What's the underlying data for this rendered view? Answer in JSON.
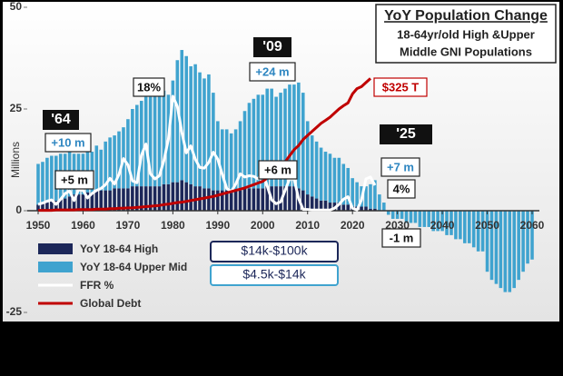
{
  "chart_data": {
    "type": "bar",
    "title": "YoY Population Change",
    "subtitle": [
      "18-64yr/old High &Upper",
      "Middle GNI Populations"
    ],
    "ylabel": "Millions",
    "legend_notes": [
      "$14k-$100k",
      "$4.5k-$14k"
    ],
    "callouts": [
      "'64",
      "'09",
      "'25"
    ],
    "xlim": [
      1950,
      2060
    ],
    "xticks": [
      1950,
      1960,
      1970,
      1980,
      1990,
      2000,
      2010,
      2020,
      2030,
      2040,
      2050,
      2060
    ],
    "ylim": [
      -25,
      50
    ],
    "yticks": [
      -25,
      0,
      25,
      50
    ],
    "stacked": true,
    "x": [
      1950,
      1951,
      1952,
      1953,
      1954,
      1955,
      1956,
      1957,
      1958,
      1959,
      1960,
      1961,
      1962,
      1963,
      1964,
      1965,
      1966,
      1967,
      1968,
      1969,
      1970,
      1971,
      1972,
      1973,
      1974,
      1975,
      1976,
      1977,
      1978,
      1979,
      1980,
      1981,
      1982,
      1983,
      1984,
      1985,
      1986,
      1987,
      1988,
      1989,
      1990,
      1991,
      1992,
      1993,
      1994,
      1995,
      1996,
      1997,
      1998,
      1999,
      2000,
      2001,
      2002,
      2003,
      2004,
      2005,
      2006,
      2007,
      2008,
      2009,
      2010,
      2011,
      2012,
      2013,
      2014,
      2015,
      2016,
      2017,
      2018,
      2019,
      2020,
      2021,
      2022,
      2023,
      2024,
      2025,
      2026,
      2027,
      2028,
      2029,
      2030,
      2031,
      2032,
      2033,
      2034,
      2035,
      2036,
      2037,
      2038,
      2039,
      2040,
      2041,
      2042,
      2043,
      2044,
      2045,
      2046,
      2047,
      2048,
      2049,
      2050,
      2051,
      2052,
      2053,
      2054,
      2055,
      2056,
      2057,
      2058,
      2059,
      2060
    ],
    "series": [
      {
        "name": "YoY 18-64 High",
        "kind": "bar",
        "color": "#1c2759",
        "values": [
          1.5,
          2,
          2,
          2.5,
          2.5,
          3,
          3,
          3.5,
          4,
          4,
          4,
          4.5,
          4.5,
          5,
          5,
          5,
          5,
          5.5,
          5.5,
          5.5,
          5.5,
          6,
          6,
          6,
          6,
          6,
          6,
          6,
          6.5,
          6.5,
          7,
          7,
          7.5,
          7,
          6.5,
          6,
          6,
          5.5,
          5.5,
          5,
          5,
          5,
          5,
          5,
          5,
          5,
          5.5,
          5.5,
          5.5,
          5.5,
          5.5,
          6,
          6,
          6,
          6,
          6,
          6,
          6,
          5.5,
          5,
          4,
          3.5,
          3,
          2.5,
          2.5,
          2,
          2,
          2,
          1.5,
          1.5,
          1,
          1,
          1,
          1,
          0.5,
          0.5,
          0,
          0,
          0,
          0,
          0,
          0,
          0,
          0,
          0,
          0,
          0,
          0,
          0,
          0,
          0,
          0,
          0,
          0,
          0,
          0,
          0,
          0,
          0,
          0,
          0,
          0,
          0,
          0,
          0,
          0,
          0,
          0,
          0,
          0,
          0
        ],
        "value_labels": [
          null,
          null,
          null,
          null,
          null,
          null,
          null,
          null,
          null,
          null,
          null,
          null,
          null,
          null,
          "+5 m",
          null,
          null,
          null,
          null,
          null,
          null,
          null,
          null,
          null,
          null,
          null,
          null,
          null,
          null,
          null,
          null,
          null,
          null,
          null,
          null,
          null,
          null,
          null,
          null,
          null,
          null,
          null,
          null,
          null,
          null,
          null,
          null,
          null,
          null,
          null,
          null,
          null,
          null,
          null,
          null,
          null,
          null,
          "+6 m",
          null,
          null,
          null,
          null,
          null,
          null,
          null,
          null,
          null,
          null,
          null,
          null,
          null,
          null,
          null,
          null,
          null,
          null,
          null,
          null,
          null,
          null,
          null,
          null,
          null,
          null,
          null,
          null,
          null,
          null,
          null,
          null,
          null,
          null,
          null,
          null,
          null,
          null,
          null,
          null,
          null,
          null,
          null,
          null,
          null,
          null,
          null,
          null,
          null,
          null,
          null,
          null,
          null
        ]
      },
      {
        "name": "YoY 18-64 Upper Mid",
        "kind": "bar",
        "color": "#3fa3cf",
        "values": [
          10,
          10,
          11,
          11,
          11,
          11,
          11,
          11,
          10,
          10,
          10,
          10,
          10,
          11,
          10,
          12,
          13,
          13,
          14,
          15,
          17,
          19,
          20,
          21,
          22,
          22,
          23,
          23,
          23,
          22,
          25,
          30,
          32,
          31,
          29,
          30,
          28,
          27,
          28,
          24,
          17,
          15,
          15,
          14,
          15,
          17,
          19,
          21,
          22,
          23,
          23,
          24,
          24,
          22,
          23,
          24,
          25,
          25,
          26,
          24,
          18,
          15,
          14,
          13,
          12,
          12,
          11,
          11,
          10,
          9,
          7,
          6,
          5,
          5,
          6,
          7,
          4,
          2,
          -1,
          -2,
          -2,
          -2,
          -3,
          -3,
          -3,
          -4,
          -4,
          -4,
          -5,
          -5,
          -5,
          -6,
          -6,
          -7,
          -7,
          -8,
          -8,
          -9,
          -10,
          -10,
          -15,
          -17,
          -18,
          -19,
          -20,
          -20,
          -19,
          -17,
          -15,
          -13,
          -12
        ],
        "value_labels": [
          null,
          null,
          null,
          null,
          null,
          null,
          null,
          null,
          null,
          null,
          null,
          null,
          null,
          null,
          "+10 m",
          null,
          null,
          null,
          null,
          null,
          null,
          null,
          null,
          null,
          null,
          null,
          null,
          null,
          null,
          null,
          null,
          null,
          null,
          null,
          null,
          null,
          null,
          null,
          null,
          null,
          null,
          null,
          null,
          null,
          null,
          null,
          null,
          null,
          null,
          null,
          null,
          null,
          null,
          null,
          null,
          null,
          null,
          null,
          null,
          "+24 m",
          null,
          null,
          null,
          null,
          null,
          null,
          null,
          null,
          null,
          null,
          null,
          null,
          null,
          null,
          null,
          "+7 m",
          null,
          null,
          "-1 m",
          null,
          null,
          null,
          null,
          null,
          null,
          null,
          null,
          null,
          null,
          null,
          null,
          null,
          null,
          null,
          null,
          null,
          null,
          null,
          null,
          null,
          null,
          null,
          null,
          null,
          null,
          null,
          null,
          null,
          null,
          null,
          null
        ]
      },
      {
        "name": "FFR %",
        "kind": "line",
        "color": "#ffffff",
        "ylim": [
          -16,
          32
        ],
        "values": [
          1.0,
          1.2,
          1.5,
          1.7,
          1.0,
          1.8,
          2.7,
          3.1,
          1.6,
          3.3,
          3.2,
          2.0,
          2.7,
          3.2,
          3.5,
          4.1,
          5.1,
          4.2,
          5.7,
          8.2,
          7.2,
          4.7,
          4.4,
          8.7,
          10.5,
          5.8,
          5.0,
          5.5,
          7.9,
          11.2,
          18,
          16.4,
          12.3,
          9.1,
          10.2,
          8.1,
          6.8,
          6.7,
          7.6,
          9.2,
          8.1,
          5.7,
          3.5,
          3.0,
          4.2,
          5.8,
          5.3,
          5.5,
          5.4,
          5.0,
          6.2,
          3.9,
          1.7,
          1.1,
          1.4,
          3.2,
          5.0,
          5.0,
          1.9,
          0.2,
          0.2,
          0.1,
          0.1,
          0.1,
          0.1,
          0.1,
          0.4,
          1.0,
          1.8,
          2.2,
          0.4,
          0.1,
          1.7,
          5.0,
          5.3,
          4,
          null,
          null,
          null,
          null,
          null,
          null,
          null,
          null,
          null,
          null,
          null,
          null,
          null,
          null,
          null,
          null,
          null,
          null,
          null,
          null,
          null,
          null,
          null,
          null,
          null,
          null,
          null,
          null,
          null,
          null,
          null,
          null,
          null,
          null,
          null
        ],
        "value_labels": [
          null,
          null,
          null,
          null,
          null,
          null,
          null,
          null,
          null,
          null,
          null,
          null,
          null,
          null,
          null,
          null,
          null,
          null,
          null,
          null,
          null,
          null,
          null,
          null,
          null,
          null,
          null,
          null,
          null,
          null,
          "18%",
          null,
          null,
          null,
          null,
          null,
          null,
          null,
          null,
          null,
          null,
          null,
          null,
          null,
          null,
          null,
          null,
          null,
          null,
          null,
          null,
          null,
          null,
          null,
          null,
          null,
          null,
          null,
          null,
          null,
          null,
          null,
          null,
          null,
          null,
          null,
          null,
          null,
          null,
          null,
          null,
          null,
          null,
          null,
          null,
          "4%",
          null,
          null,
          null,
          null,
          null,
          null,
          null,
          null,
          null,
          null,
          null,
          null,
          null,
          null,
          null,
          null,
          null,
          null,
          null,
          null,
          null,
          null,
          null,
          null,
          null,
          null,
          null,
          null,
          null,
          null,
          null,
          null,
          null,
          null,
          null
        ]
      },
      {
        "name": "Global Debt",
        "kind": "line",
        "color": "#c00000",
        "ylim": [
          -250,
          500
        ],
        "values": [
          1,
          1,
          1,
          1,
          2,
          2,
          2,
          2,
          2,
          3,
          3,
          3,
          3,
          4,
          4,
          4,
          5,
          5,
          6,
          6,
          7,
          7,
          8,
          9,
          10,
          11,
          12,
          13,
          15,
          16,
          18,
          20,
          21,
          23,
          25,
          27,
          29,
          31,
          33,
          35,
          38,
          41,
          44,
          47,
          50,
          53,
          56,
          60,
          64,
          68,
          72,
          80,
          90,
          100,
          110,
          120,
          135,
          150,
          160,
          175,
          185,
          195,
          205,
          215,
          222,
          230,
          240,
          250,
          258,
          265,
          287,
          300,
          305,
          315,
          325,
          null,
          null,
          null,
          null,
          null,
          null,
          null,
          null,
          null,
          null,
          null,
          null,
          null,
          null,
          null,
          null,
          null,
          null,
          null,
          null,
          null,
          null,
          null,
          null,
          null,
          null,
          null,
          null,
          null,
          null,
          null,
          null,
          null,
          null,
          null,
          null
        ],
        "value_labels": [
          null,
          null,
          null,
          null,
          null,
          null,
          null,
          null,
          null,
          null,
          null,
          null,
          null,
          null,
          null,
          null,
          null,
          null,
          null,
          null,
          null,
          null,
          null,
          null,
          null,
          null,
          null,
          null,
          null,
          null,
          null,
          null,
          null,
          null,
          null,
          null,
          null,
          null,
          null,
          null,
          null,
          null,
          null,
          null,
          null,
          null,
          null,
          null,
          null,
          null,
          null,
          null,
          null,
          null,
          null,
          null,
          null,
          null,
          null,
          null,
          null,
          null,
          null,
          null,
          null,
          null,
          null,
          null,
          null,
          null,
          null,
          null,
          null,
          null,
          "$325 T",
          null,
          null,
          null,
          null,
          null,
          null,
          null,
          null,
          null,
          null,
          null,
          null,
          null,
          null,
          null,
          null,
          null,
          null,
          null,
          null,
          null,
          null,
          null,
          null,
          null,
          null,
          null,
          null,
          null,
          null,
          null,
          null,
          null,
          null,
          null,
          null
        ]
      }
    ]
  }
}
